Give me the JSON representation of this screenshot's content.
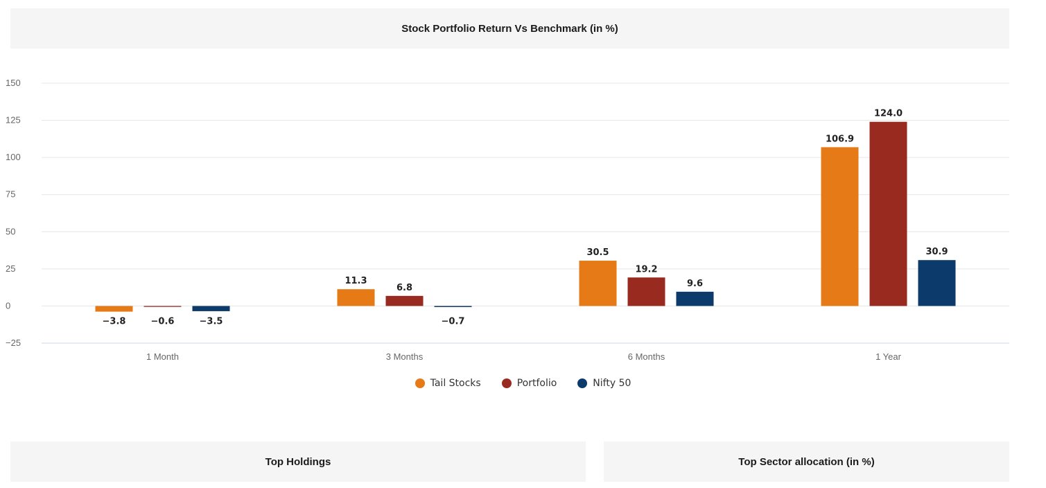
{
  "header": {
    "title": "Stock Portfolio Return Vs Benchmark (in %)"
  },
  "sections": {
    "holdings": "Top Holdings",
    "sector": "Top Sector allocation (in %)"
  },
  "colors": {
    "tail": "#e57a17",
    "portfolio": "#982a20",
    "nifty": "#0c3a6b",
    "grid": "#e6e6e6"
  },
  "chart_data": {
    "type": "bar",
    "title": "Stock Portfolio Return Vs Benchmark (in %)",
    "categories": [
      "1 Month",
      "3 Months",
      "6 Months",
      "1 Year"
    ],
    "series": [
      {
        "name": "Tail Stocks",
        "values": [
          -3.8,
          11.3,
          30.5,
          106.9
        ],
        "labels": [
          "-3.8",
          "11.3",
          "30.5",
          "106.9"
        ],
        "color": "#e57a17"
      },
      {
        "name": "Portfolio",
        "values": [
          -0.6,
          6.8,
          19.2,
          124.0
        ],
        "labels": [
          "-0.6",
          "6.8",
          "19.2",
          "124.0"
        ],
        "color": "#982a20"
      },
      {
        "name": "Nifty 50",
        "values": [
          -3.5,
          -0.7,
          9.6,
          30.9
        ],
        "labels": [
          "-3.5",
          "-0.7",
          "9.6",
          "30.9"
        ],
        "color": "#0c3a6b"
      }
    ],
    "ylim": [
      -25,
      150
    ],
    "yticks": [
      150,
      125,
      100,
      75,
      50,
      25,
      0,
      -25
    ],
    "ytick_labels": [
      "150",
      "125",
      "100",
      "75",
      "50",
      "25",
      "0",
      "−25"
    ],
    "grid": true,
    "legend": "bottom-center"
  }
}
